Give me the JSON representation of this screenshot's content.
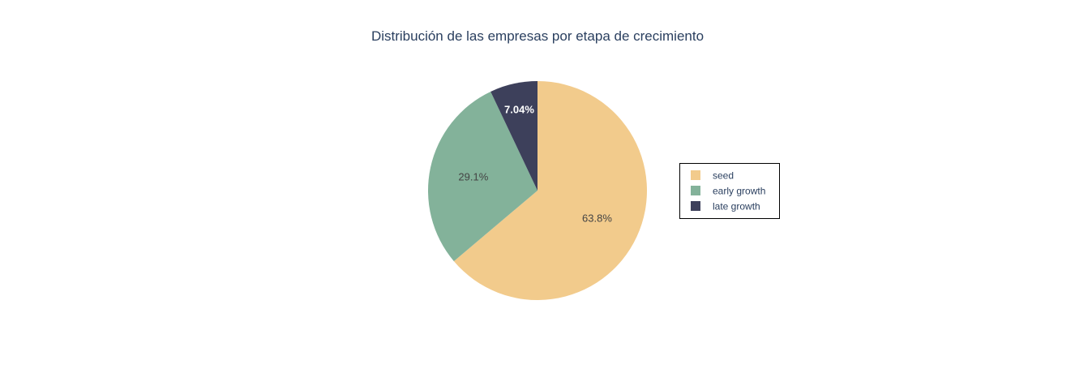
{
  "chart_data": {
    "type": "pie",
    "title": "Distribución de las empresas por etapa de crecimiento",
    "categories": [
      "seed",
      "early growth",
      "late growth"
    ],
    "values": [
      63.8,
      29.1,
      7.04
    ],
    "value_labels": [
      "63.8%",
      "29.1%",
      "7.04%"
    ],
    "colors": [
      "#f2cb8c",
      "#83b29a",
      "#3d405b"
    ],
    "label_colors": [
      "#444444",
      "#444444",
      "#ffffff"
    ],
    "direction": "clockwise",
    "start": "top",
    "legend": {
      "placement": "right",
      "entries": [
        "seed",
        "early growth",
        "late growth"
      ]
    }
  }
}
